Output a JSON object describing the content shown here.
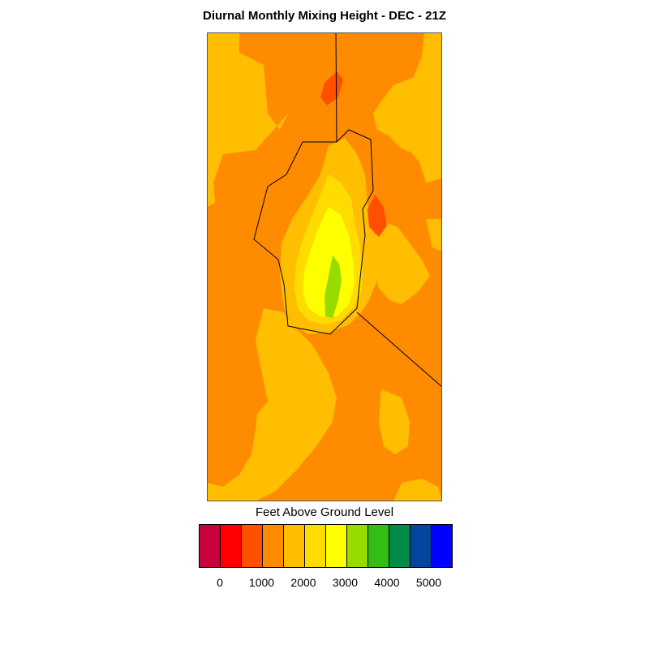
{
  "title": "Diurnal Monthly Mixing Height - DEC - 21Z",
  "legend": {
    "title": "Feet Above Ground Level",
    "colors": [
      "#c8003c",
      "#ff0000",
      "#ff5000",
      "#ff8c00",
      "#ffbe00",
      "#ffdc00",
      "#ffff00",
      "#96dc00",
      "#32be14",
      "#008c46",
      "#0046a0",
      "#0000ff"
    ],
    "tick_labels": [
      "0",
      "1000",
      "2000",
      "3000",
      "4000",
      "5000"
    ]
  },
  "map": {
    "fill_colors": {
      "level_500": "#ff5000",
      "level_1000": "#ff8c00",
      "level_1500": "#ffbe00",
      "level_2000": "#ffdc00",
      "level_2500": "#ffff00",
      "level_3000": "#96dc00"
    },
    "boundary_color": "#000000"
  }
}
